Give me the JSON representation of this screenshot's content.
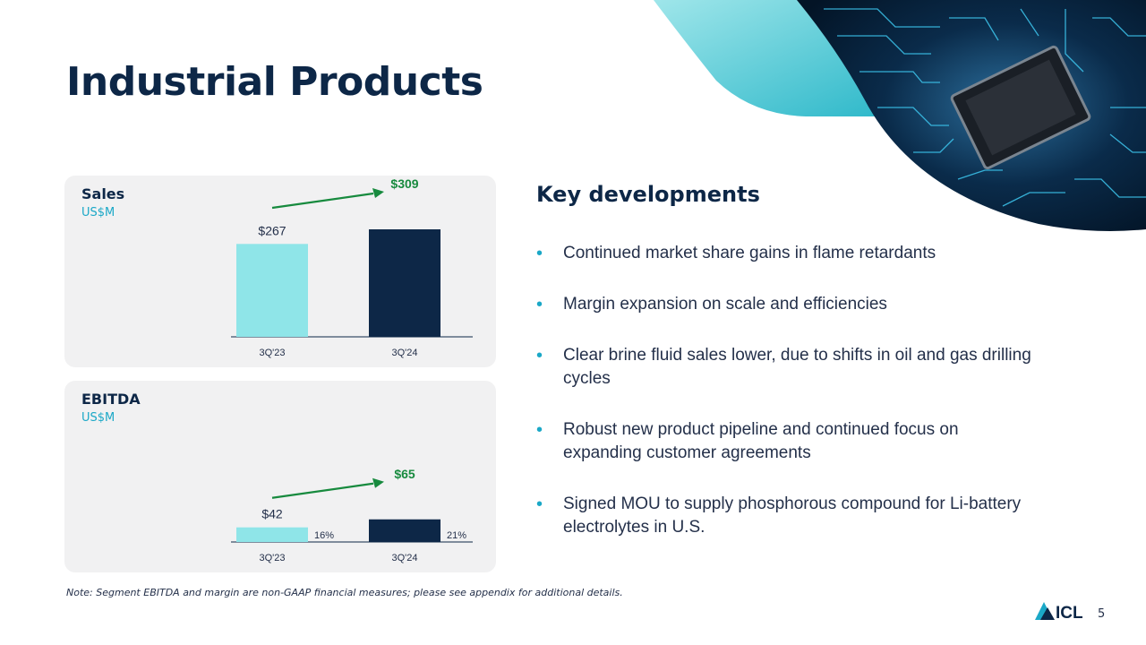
{
  "title": "Industrial Products",
  "colors": {
    "navy": "#0d2747",
    "teal": "#1ba8c7",
    "light_bar": "#8fe5e8",
    "dark_bar": "#0d2747",
    "arrow_green": "#178a3e",
    "panel_bg": "#f1f1f2"
  },
  "hero_image": "circuit-board-chip-image",
  "chart_data": [
    {
      "type": "bar",
      "title": "Sales",
      "unit": "US$M",
      "categories": [
        "3Q'23",
        "3Q'24"
      ],
      "values": [
        267,
        309
      ],
      "value_labels": [
        "$267",
        "$309"
      ],
      "ylim": [
        0,
        309
      ],
      "trend": "increase"
    },
    {
      "type": "bar",
      "title": "EBITDA",
      "unit": "US$M",
      "categories": [
        "3Q'23",
        "3Q'24"
      ],
      "values": [
        42,
        65
      ],
      "value_labels": [
        "$42",
        "$65"
      ],
      "margin_labels": [
        "16%",
        "21%"
      ],
      "ylim": [
        0,
        309
      ],
      "trend": "increase"
    }
  ],
  "key_developments": {
    "title": "Key developments",
    "items": [
      "Continued market share gains in flame retardants",
      "Margin expansion on scale and efficiencies",
      "Clear brine fluid sales lower, due to shifts in oil and gas drilling cycles",
      "Robust new product pipeline and continued focus on expanding customer agreements",
      "Signed MOU to supply phosphorous compound for Li-battery electrolytes in U.S."
    ]
  },
  "note": "Note: Segment EBITDA and margin are non-GAAP financial measures; please see appendix for additional details.",
  "logo_text": "ICL",
  "page_number": "5"
}
